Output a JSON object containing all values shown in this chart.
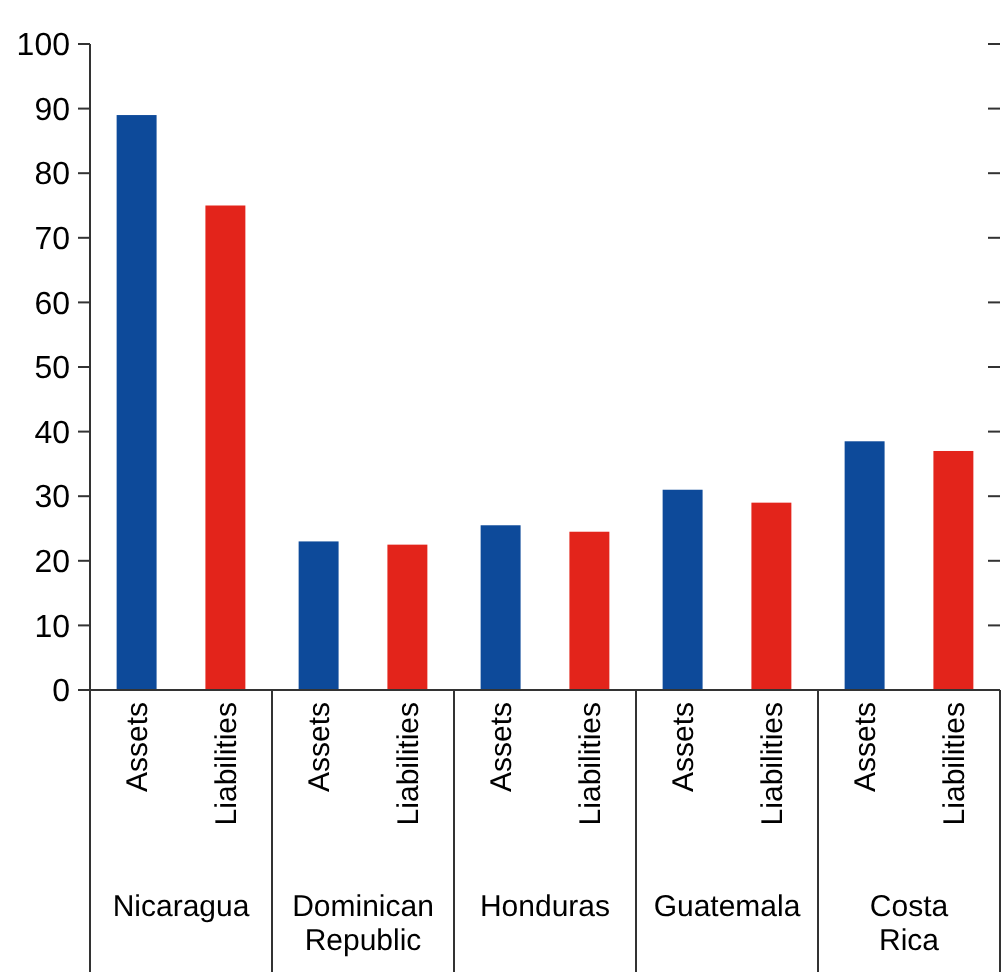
{
  "chart_data": {
    "type": "bar",
    "categories": [
      "Nicaragua",
      "Dominican Republic",
      "Honduras",
      "Guatemala",
      "Costa Rica"
    ],
    "series": [
      {
        "name": "Assets",
        "color": "#0d4a9a",
        "values": [
          89,
          23,
          25.5,
          31,
          38.5
        ]
      },
      {
        "name": "Liabilities",
        "color": "#e3241b",
        "values": [
          75,
          22.5,
          24.5,
          29,
          37
        ]
      }
    ],
    "ylim": [
      0,
      100
    ],
    "yticks": [
      0,
      10,
      20,
      30,
      40,
      50,
      60,
      70,
      80,
      90,
      100
    ],
    "grid": false
  }
}
